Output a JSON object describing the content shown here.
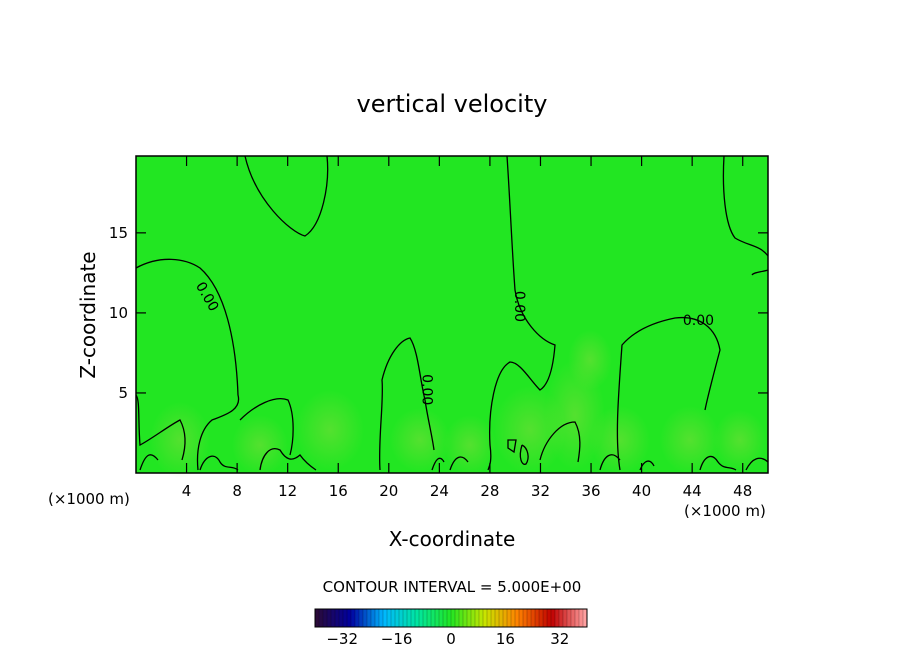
{
  "chart_data": {
    "type": "contour",
    "title": "vertical velocity",
    "xlabel": "X-coordinate",
    "ylabel": "Z-coordinate",
    "x_units": "(×1000 m)",
    "y_units": "(×1000 m)",
    "xlim": [
      0,
      50
    ],
    "ylim": [
      0,
      19.8
    ],
    "x_ticks": [
      4,
      8,
      12,
      16,
      20,
      24,
      28,
      32,
      36,
      40,
      44,
      48
    ],
    "y_ticks": [
      5,
      10,
      15
    ],
    "contour_interval_text": "CONTOUR INTERVAL = 5.000E+00",
    "contour_levels": [
      0
    ],
    "contour_labels": [
      {
        "text": "0.00",
        "x": 5.6,
        "y": 11.0,
        "angle": 60
      },
      {
        "text": "0.00",
        "x": 30.3,
        "y": 10.4,
        "angle": 90
      },
      {
        "text": "0.00",
        "x": 23.0,
        "y": 5.2,
        "angle": 90
      },
      {
        "text": "0.00",
        "x": 44.5,
        "y": 9.5,
        "angle": 0
      }
    ],
    "field_color": "#22e622",
    "colorbar": {
      "ticks": [
        -32,
        -16,
        0,
        16,
        32
      ],
      "range": [
        -40,
        40
      ],
      "colors": [
        "#2a0a3a",
        "#0000a0",
        "#00b8ff",
        "#00e6a0",
        "#22e622",
        "#c8e600",
        "#ff8000",
        "#c00000",
        "#ffa0a0"
      ]
    }
  }
}
